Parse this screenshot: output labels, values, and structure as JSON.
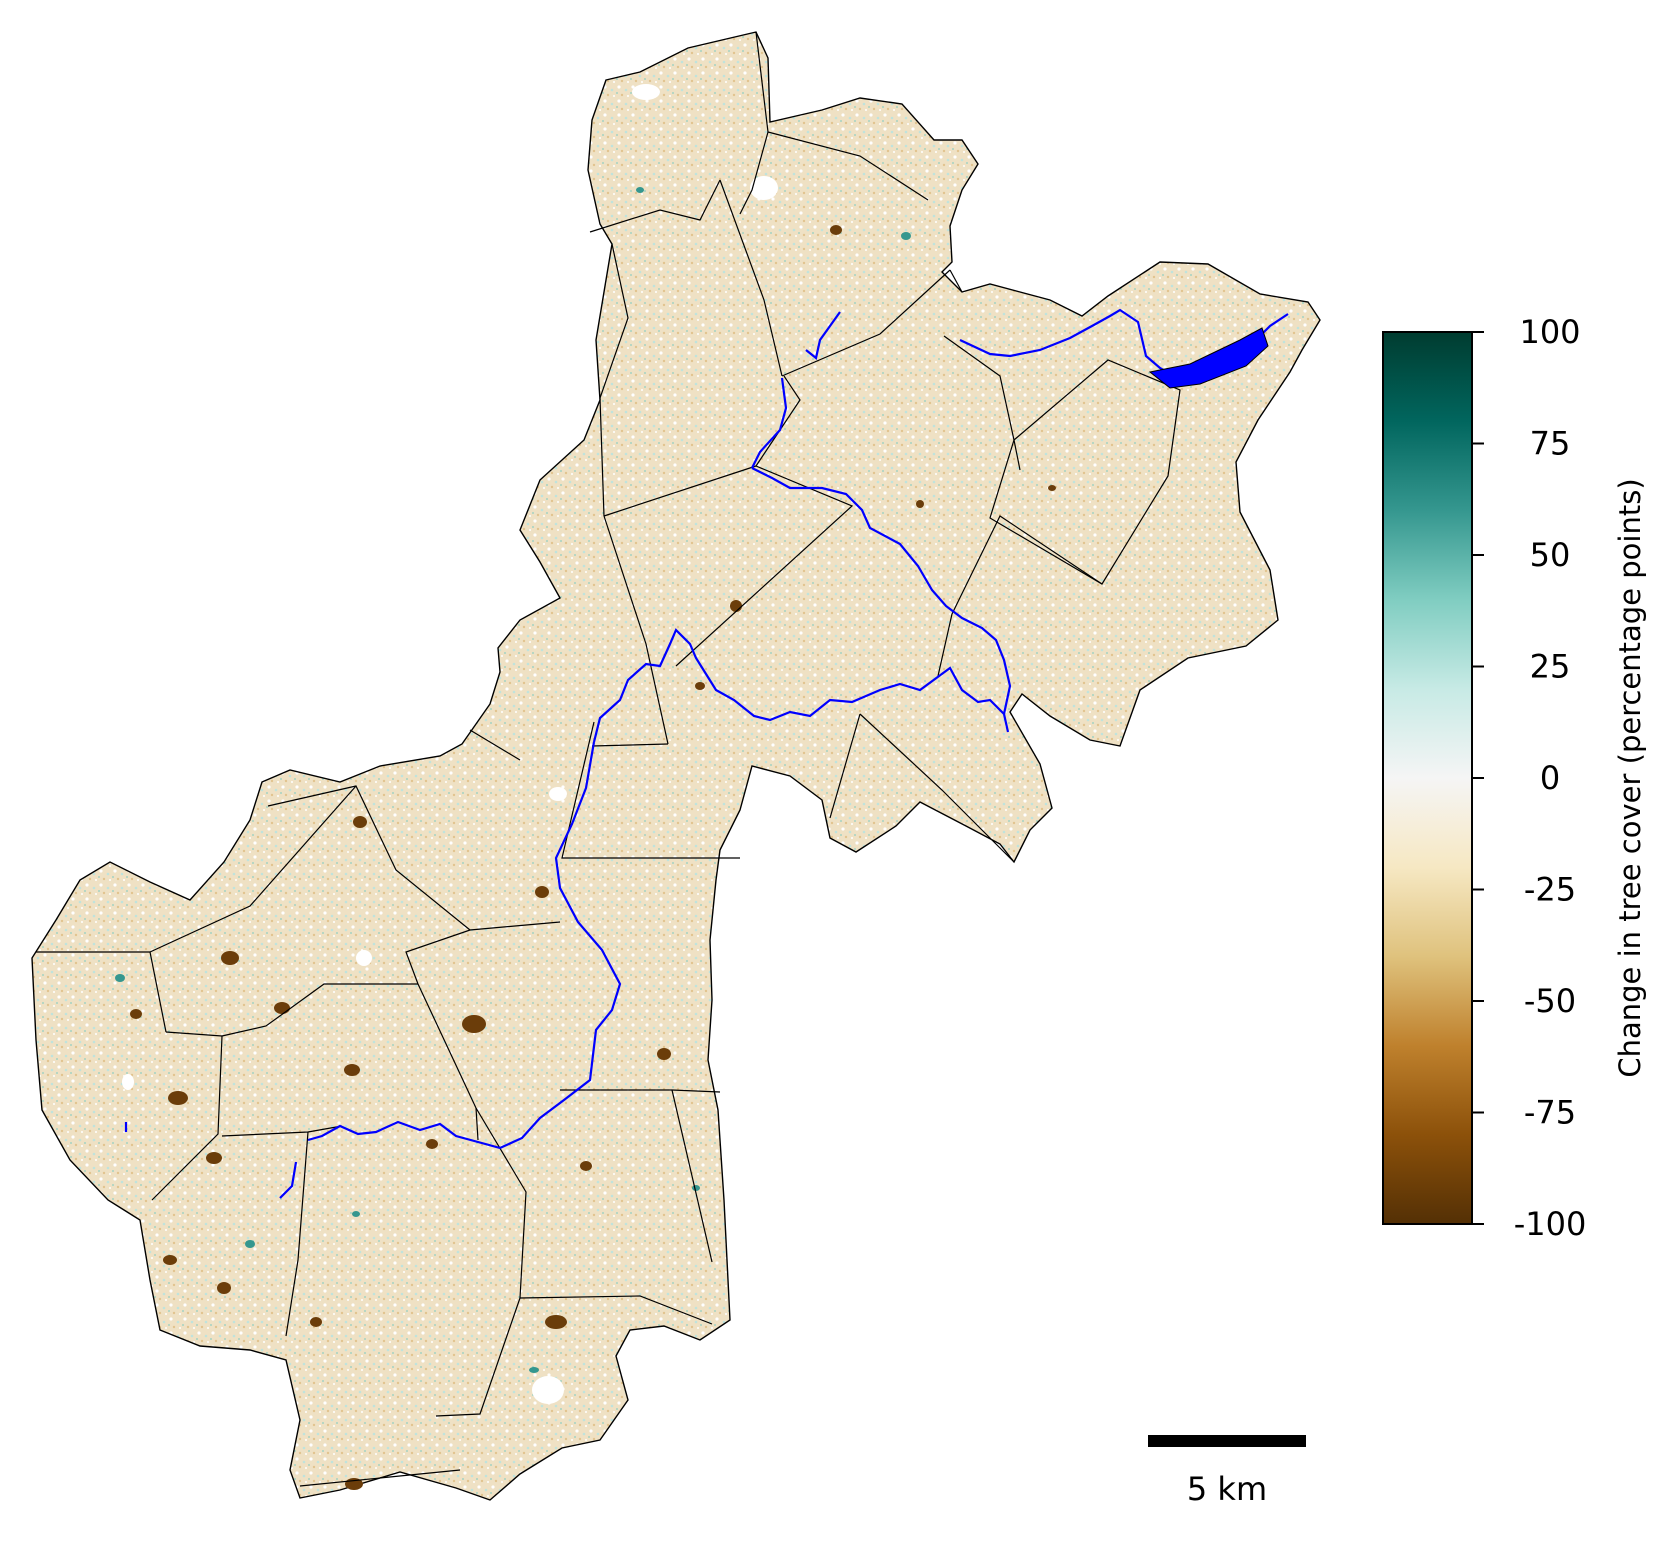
{
  "map": {
    "scale_bar": {
      "label": "5 km"
    },
    "rivers_color": "#0000ff",
    "boundary_color": "#000000"
  },
  "colorbar": {
    "title": "Change in tree cover (percentage points)",
    "ticks": [
      {
        "value": 100,
        "label": "100"
      },
      {
        "value": 75,
        "label": "75"
      },
      {
        "value": 50,
        "label": "50"
      },
      {
        "value": 25,
        "label": "25"
      },
      {
        "value": 0,
        "label": "0"
      },
      {
        "value": -25,
        "label": "-25"
      },
      {
        "value": -50,
        "label": "-50"
      },
      {
        "value": -75,
        "label": "-75"
      },
      {
        "value": -100,
        "label": "-100"
      }
    ],
    "range": [
      -100,
      100
    ],
    "colormap": "BrBG",
    "stops": [
      "#543005",
      "#8c510a",
      "#bf812d",
      "#dfc27d",
      "#f6e8c3",
      "#f5f5f5",
      "#c7eae5",
      "#80cdc1",
      "#35978f",
      "#01665e",
      "#003c30"
    ]
  }
}
